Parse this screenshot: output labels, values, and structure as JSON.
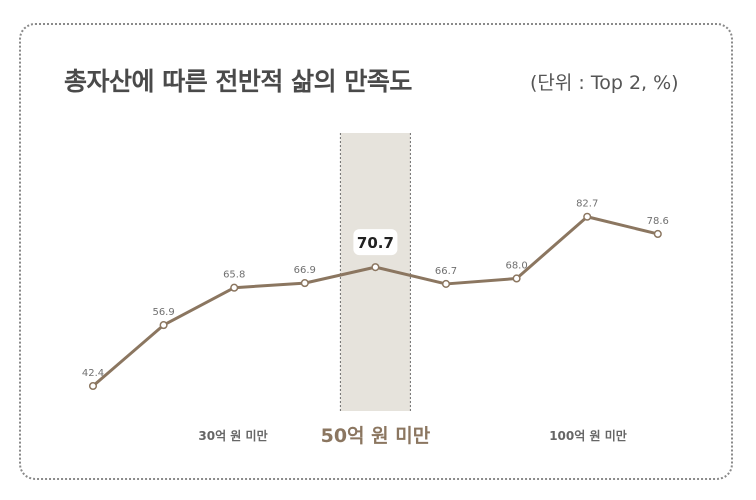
{
  "title": "총자산에 따른 전반적 삶의 만족도",
  "unit_note": "(단위 : Top 2, %)",
  "colors": {
    "line": "#8b7660",
    "highlight_band": "#e6e3dc",
    "highlight_text": "#8b7660",
    "label": "#707070"
  },
  "chart_data": {
    "type": "line",
    "title": "총자산에 따른 전반적 삶의 만족도",
    "unit": "(단위 : Top 2, %)",
    "values": [
      42.4,
      56.9,
      65.8,
      66.9,
      70.7,
      66.7,
      68.0,
      82.7,
      78.6
    ],
    "value_labels": [
      "42.4",
      "56.9",
      "65.8",
      "66.9",
      "70.7",
      "66.7",
      "68.0",
      "82.7",
      "78.6"
    ],
    "highlight_index": 4,
    "group_labels": [
      {
        "label": "30억 원 미만",
        "emphasis": false
      },
      {
        "label": "50억 원 미만",
        "emphasis": true
      },
      {
        "label": "100억 원 미만",
        "emphasis": false
      }
    ],
    "grid": false
  }
}
